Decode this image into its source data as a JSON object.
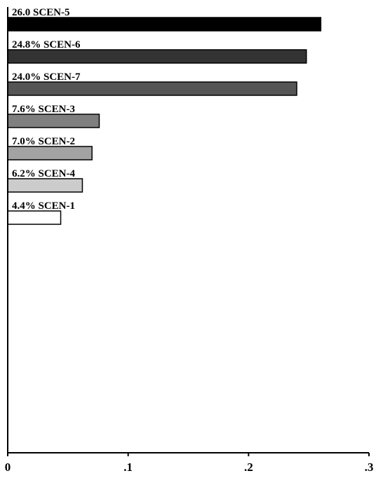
{
  "chart_data": {
    "type": "bar",
    "orientation": "horizontal",
    "title": "",
    "xlabel": "",
    "ylabel": "",
    "xlim": [
      0,
      0.3
    ],
    "xticks": [
      0,
      0.1,
      0.2,
      0.3
    ],
    "xtick_labels": [
      "0",
      ".1",
      ".2",
      ".3"
    ],
    "grid": false,
    "bars": [
      {
        "label": "26.0 SCEN-5",
        "value": 0.26,
        "color": "#000000"
      },
      {
        "label": "24.8% SCEN-6",
        "value": 0.248,
        "color": "#333333"
      },
      {
        "label": "24.0% SCEN-7",
        "value": 0.24,
        "color": "#555555"
      },
      {
        "label": "7.6% SCEN-3",
        "value": 0.076,
        "color": "#7f7f7f"
      },
      {
        "label": "7.0% SCEN-2",
        "value": 0.07,
        "color": "#a3a3a3"
      },
      {
        "label": "6.2% SCEN-4",
        "value": 0.062,
        "color": "#cccccc"
      },
      {
        "label": "4.4% SCEN-1",
        "value": 0.044,
        "color": "#ffffff"
      }
    ]
  }
}
